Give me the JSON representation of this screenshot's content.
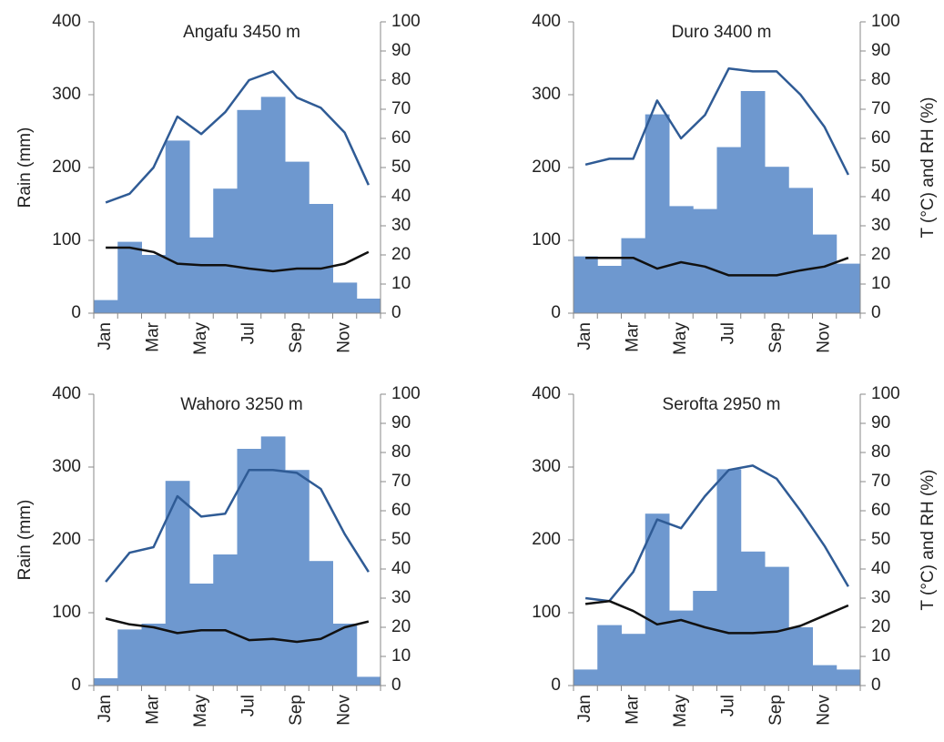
{
  "chart_data": [
    {
      "type": "combo",
      "title": "Angafu 3450 m",
      "ylabel": "Rain (mm)",
      "categories": [
        "Jan",
        null,
        "Mar",
        null,
        "May",
        null,
        "Jul",
        null,
        "Sep",
        null,
        "Nov",
        null
      ],
      "ylim": [
        0,
        400
      ],
      "yticks": [
        0,
        100,
        200,
        300,
        400
      ],
      "y2lim": [
        0,
        100
      ],
      "y2ticks": [
        0,
        10,
        20,
        30,
        40,
        50,
        60,
        70,
        80,
        90,
        100
      ],
      "series": [
        {
          "type": "bar",
          "color": "#6e98cf",
          "values": [
            18,
            98,
            80,
            237,
            104,
            171,
            279,
            297,
            208,
            150,
            42,
            20
          ]
        },
        {
          "type": "line",
          "axis": "y2",
          "color": "#2f5b95",
          "values": [
            38,
            41,
            50,
            67.5,
            61.5,
            69,
            80,
            83,
            74,
            70.5,
            62,
            44
          ]
        },
        {
          "type": "line",
          "axis": "y2",
          "color": "#111111",
          "values": [
            22.5,
            22.5,
            21,
            17,
            16.5,
            16.5,
            15.3,
            14.4,
            15.3,
            15.3,
            17,
            21
          ]
        }
      ]
    },
    {
      "type": "combo",
      "title": "Duro 3400 m",
      "y2label": "T (°C) and RH (%)",
      "categories": [
        "Jan",
        null,
        "Mar",
        null,
        "May",
        null,
        "Jul",
        null,
        "Sep",
        null,
        "Nov",
        null
      ],
      "ylim": [
        0,
        400
      ],
      "yticks": [
        0,
        100,
        200,
        300,
        400
      ],
      "y2lim": [
        0,
        100
      ],
      "y2ticks": [
        0,
        10,
        20,
        30,
        40,
        50,
        60,
        70,
        80,
        90,
        100
      ],
      "series": [
        {
          "type": "bar",
          "color": "#6e98cf",
          "values": [
            78,
            65,
            103,
            273,
            147,
            143,
            228,
            305,
            201,
            172,
            108,
            68
          ]
        },
        {
          "type": "line",
          "axis": "y2",
          "color": "#2f5b95",
          "values": [
            51,
            53,
            53,
            73,
            60,
            68,
            84,
            83,
            83,
            75,
            64,
            47.5
          ]
        },
        {
          "type": "line",
          "axis": "y2",
          "color": "#111111",
          "values": [
            19,
            19,
            19,
            15.3,
            17.5,
            16,
            13,
            13,
            13,
            14.7,
            16,
            19
          ]
        }
      ]
    },
    {
      "type": "combo",
      "title": "Wahoro 3250 m",
      "ylabel": "Rain (mm)",
      "categories": [
        "Jan",
        null,
        "Mar",
        null,
        "May",
        null,
        "Jul",
        null,
        "Sep",
        null,
        "Nov",
        null
      ],
      "ylim": [
        0,
        400
      ],
      "yticks": [
        0,
        100,
        200,
        300,
        400
      ],
      "y2lim": [
        0,
        100
      ],
      "y2ticks": [
        0,
        10,
        20,
        30,
        40,
        50,
        60,
        70,
        80,
        90,
        100
      ],
      "series": [
        {
          "type": "bar",
          "color": "#6e98cf",
          "values": [
            10,
            77,
            85,
            281,
            140,
            180,
            325,
            342,
            296,
            171,
            85,
            12
          ]
        },
        {
          "type": "line",
          "axis": "y2",
          "color": "#2f5b95",
          "values": [
            35.6,
            45.6,
            47.5,
            65,
            58,
            59,
            74,
            74,
            73,
            67.5,
            52,
            39
          ]
        },
        {
          "type": "line",
          "axis": "y2",
          "color": "#111111",
          "values": [
            23,
            21,
            20,
            18,
            19,
            19,
            15.6,
            16,
            15,
            16,
            20,
            22
          ]
        }
      ]
    },
    {
      "type": "combo",
      "title": "Serofta 2950 m",
      "y2label": "T (°C) and RH (%)",
      "categories": [
        "Jan",
        null,
        "Mar",
        null,
        "May",
        null,
        "Jul",
        null,
        "Sep",
        null,
        "Nov",
        null
      ],
      "ylim": [
        0,
        400
      ],
      "yticks": [
        0,
        100,
        200,
        300,
        400
      ],
      "y2lim": [
        0,
        100
      ],
      "y2ticks": [
        0,
        10,
        20,
        30,
        40,
        50,
        60,
        70,
        80,
        90,
        100
      ],
      "series": [
        {
          "type": "bar",
          "color": "#6e98cf",
          "values": [
            22,
            83,
            71,
            236,
            103,
            130,
            297,
            184,
            163,
            80,
            28,
            22
          ]
        },
        {
          "type": "line",
          "axis": "y2",
          "color": "#2f5b95",
          "values": [
            30,
            29,
            39,
            57,
            54,
            65,
            74,
            75.5,
            71,
            60,
            48,
            34
          ]
        },
        {
          "type": "line",
          "axis": "y2",
          "color": "#111111",
          "values": [
            28,
            29,
            25.6,
            21,
            22.5,
            20,
            18,
            18,
            18.5,
            20.5,
            24,
            27.5
          ]
        }
      ]
    }
  ]
}
